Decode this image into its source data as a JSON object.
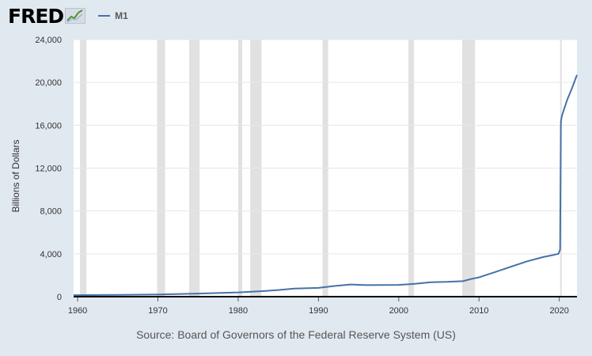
{
  "header": {
    "logo_text": "FRED",
    "legend_label": "M1"
  },
  "source": "Source: Board of Governors of the Federal Reserve System (US)",
  "colors": {
    "background": "#e1e9f0",
    "plot_background": "#ffffff",
    "series": "#4572a7",
    "recession": "#e1e1e1",
    "gridline": "#e6e6e6",
    "axis": "#000000"
  },
  "chart_data": {
    "type": "line",
    "title": "",
    "xlabel": "",
    "ylabel": "Billions of Dollars",
    "xlim": [
      1959.5,
      2022.2
    ],
    "ylim": [
      0,
      24000
    ],
    "grid": true,
    "legend": "top-left",
    "x_ticks": [
      1960,
      1970,
      1980,
      1990,
      2000,
      2010,
      2020
    ],
    "y_ticks": [
      0,
      4000,
      8000,
      12000,
      16000,
      20000,
      24000
    ],
    "y_tick_labels": [
      "0",
      "4,000",
      "8,000",
      "12,000",
      "16,000",
      "20,000",
      "24,000"
    ],
    "recessions": [
      [
        1960.3,
        1961.1
      ],
      [
        1969.9,
        1970.9
      ],
      [
        1973.9,
        1975.2
      ],
      [
        1980.0,
        1980.5
      ],
      [
        1981.5,
        1982.9
      ],
      [
        1990.5,
        1991.2
      ],
      [
        2001.2,
        2001.9
      ],
      [
        2007.9,
        2009.5
      ],
      [
        2020.1,
        2020.3
      ]
    ],
    "series": [
      {
        "name": "M1",
        "x": [
          1959.5,
          1965,
          1970,
          1975,
          1980,
          1983,
          1985,
          1987,
          1990,
          1992,
          1994,
          1996,
          1998,
          2000,
          2002,
          2004,
          2006,
          2008,
          2009,
          2010,
          2012,
          2014,
          2016,
          2018,
          2019,
          2019.9,
          2020.1,
          2020.2,
          2020.3,
          2020.5,
          2021,
          2021.5,
          2022.2
        ],
        "y": [
          140,
          170,
          210,
          290,
          400,
          520,
          620,
          750,
          820,
          1000,
          1140,
          1080,
          1090,
          1100,
          1200,
          1350,
          1380,
          1450,
          1650,
          1800,
          2300,
          2800,
          3300,
          3700,
          3850,
          4000,
          4400,
          16300,
          16800,
          17300,
          18400,
          19300,
          20700
        ]
      }
    ]
  }
}
